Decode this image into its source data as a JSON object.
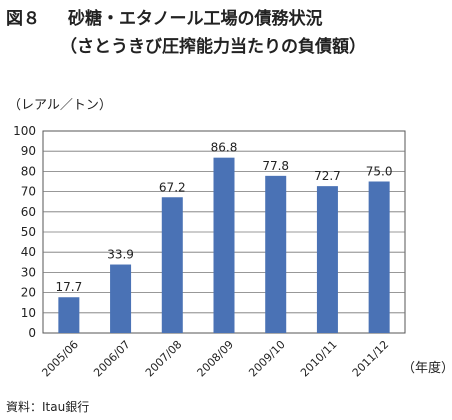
{
  "figure": {
    "number": "図８",
    "title_line1": "砂糖・エタノール工場の債務状況",
    "title_line2": "（さとうきび圧搾能力当たりの負債額）",
    "source": "資料：Itau銀行"
  },
  "chart_data": {
    "type": "bar",
    "ylabel": "（レアル／トン）",
    "xlabel": "（年度）",
    "categories": [
      "2005/06",
      "2006/07",
      "2007/08",
      "2008/09",
      "2009/10",
      "2010/11",
      "2011/12"
    ],
    "values": [
      17.7,
      33.9,
      67.2,
      86.8,
      77.8,
      72.7,
      75.0
    ],
    "value_labels": [
      "17.7",
      "33.9",
      "67.2",
      "86.8",
      "77.8",
      "72.7",
      "75.0"
    ],
    "yticks": [
      "0",
      "10",
      "20",
      "30",
      "40",
      "50",
      "60",
      "70",
      "80",
      "90",
      "100"
    ],
    "ylim": [
      0,
      100
    ],
    "grid": true,
    "bar_color": "#4a72b5"
  }
}
